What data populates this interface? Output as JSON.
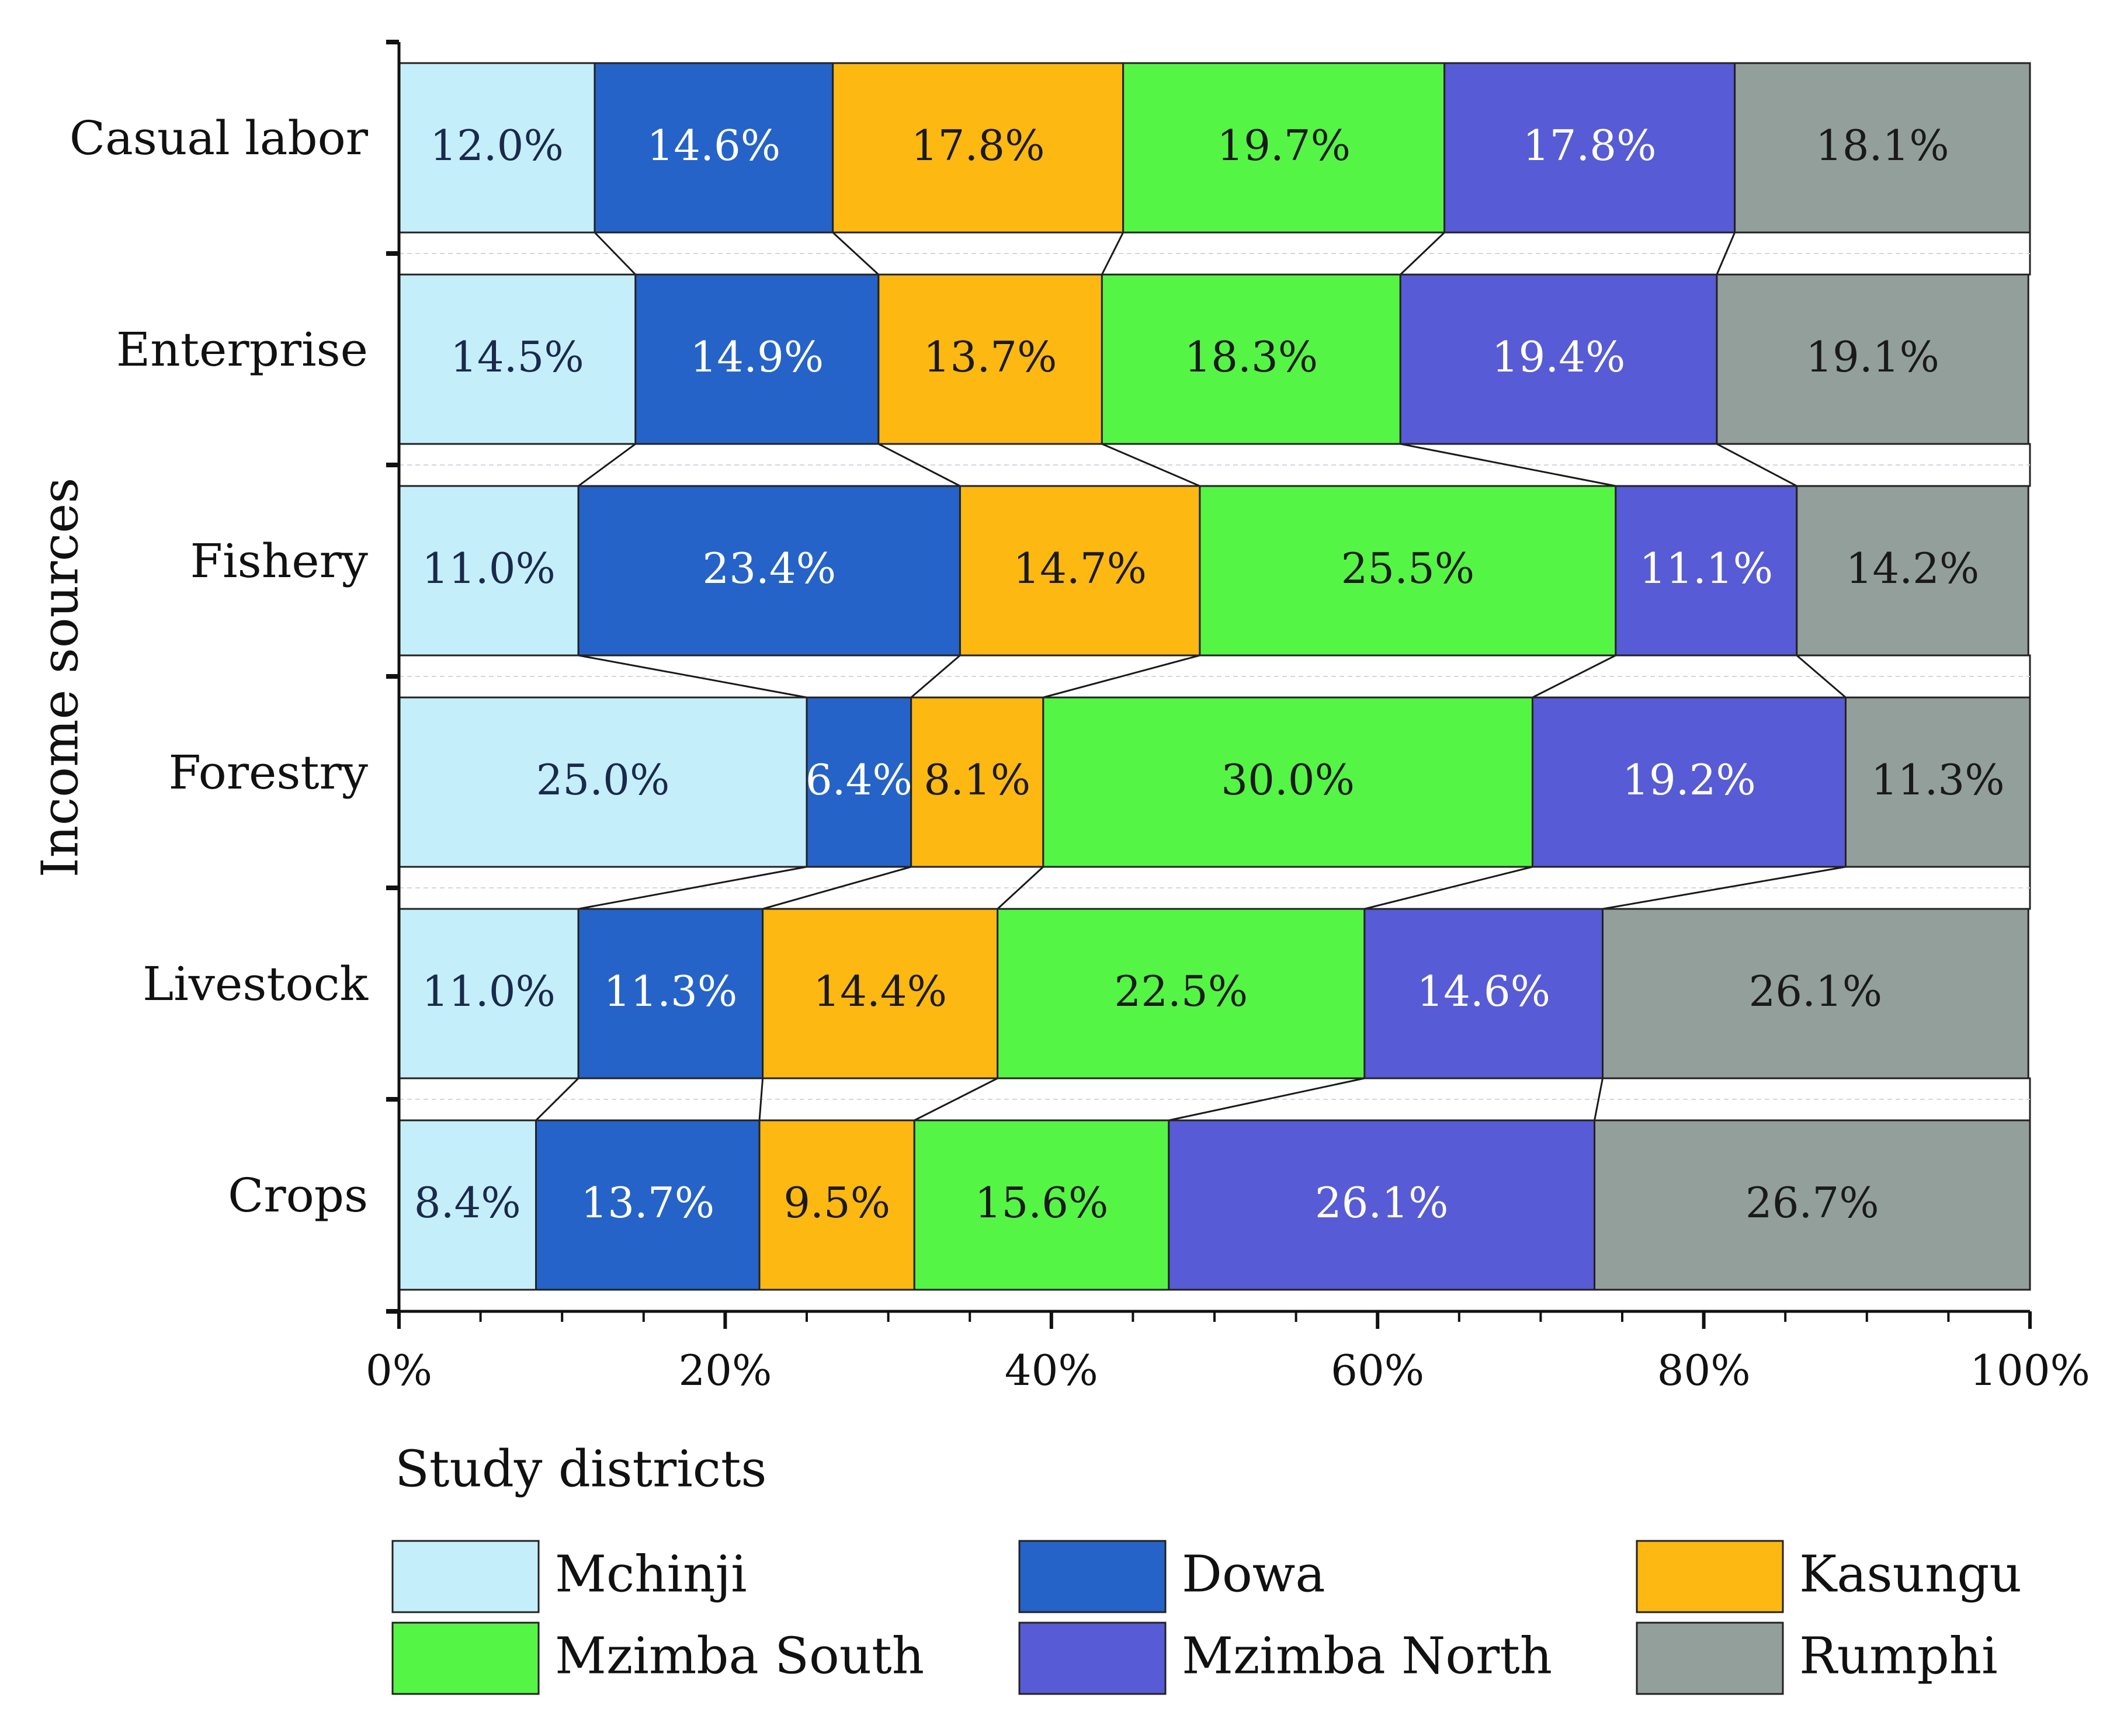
{
  "chart_data": {
    "type": "bar",
    "stacked": true,
    "orientation": "horizontal",
    "normalized_percent": true,
    "ylabel": "Income sources",
    "categories": [
      "Casual labor",
      "Enterprise",
      "Fishery",
      "Forestry",
      "Livestock",
      "Crops"
    ],
    "xlim": [
      0,
      100
    ],
    "xticks": [
      "0%",
      "20%",
      "40%",
      "60%",
      "80%",
      "100%"
    ],
    "legend_title": "Study districts",
    "legend_placement": "bottom",
    "series": [
      {
        "name": "Mchinji",
        "color": "#c5eefb",
        "label_color": "#1a2a4a",
        "values": [
          12.0,
          14.5,
          11.0,
          25.0,
          11.0,
          8.4
        ],
        "labels": [
          "12.0%",
          "14.5%",
          "11.0%",
          "25.0%",
          "11.0%",
          "8.4%"
        ]
      },
      {
        "name": "Dowa",
        "color": "#2563c8",
        "label_color": "#ffffff",
        "values": [
          14.6,
          14.9,
          23.4,
          6.4,
          11.3,
          13.7
        ],
        "labels": [
          "14.6%",
          "14.9%",
          "23.4%",
          "6.4%",
          "11.3%",
          "13.7%"
        ]
      },
      {
        "name": "Kasungu",
        "color": "#fdb811",
        "label_color": "#1a1a1a",
        "values": [
          17.8,
          13.7,
          14.7,
          8.1,
          14.4,
          9.5
        ],
        "labels": [
          "17.8%",
          "13.7%",
          "14.7%",
          "8.1%",
          "14.4%",
          "9.5%"
        ]
      },
      {
        "name": "Mzimba South",
        "color": "#55f545",
        "label_color": "#1a1a1a",
        "values": [
          19.7,
          18.3,
          25.5,
          30.0,
          22.5,
          15.6
        ],
        "labels": [
          "19.7%",
          "18.3%",
          "25.5%",
          "30.0%",
          "22.5%",
          "15.6%"
        ]
      },
      {
        "name": "Mzimba North",
        "color": "#575bd5",
        "label_color": "#ffffff",
        "values": [
          17.8,
          19.4,
          11.1,
          19.2,
          14.6,
          26.1
        ],
        "labels": [
          "17.8%",
          "19.4%",
          "11.1%",
          "19.2%",
          "14.6%",
          "26.1%"
        ]
      },
      {
        "name": "Rumphi",
        "color": "#939f9b",
        "label_color": "#1a1a1a",
        "values": [
          18.1,
          19.1,
          14.2,
          11.3,
          26.1,
          26.7
        ],
        "labels": [
          "18.1%",
          "19.1%",
          "14.2%",
          "11.3%",
          "26.1%",
          "26.7%"
        ]
      }
    ]
  }
}
